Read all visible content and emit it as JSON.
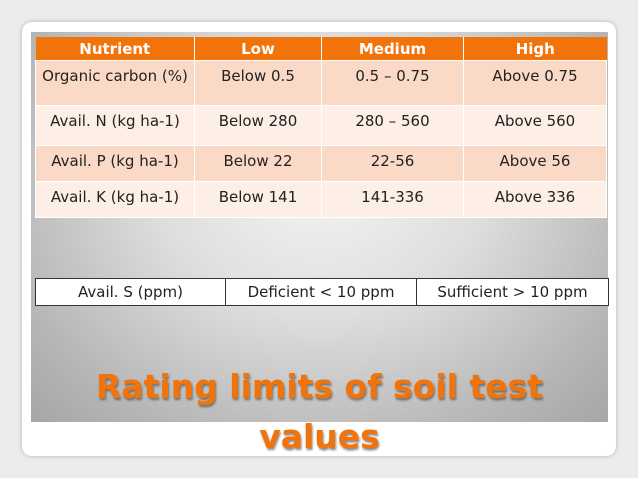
{
  "rating_table": {
    "headers": [
      "Nutrient",
      "Low",
      "Medium",
      "High"
    ],
    "rows": [
      [
        "Organic carbon (%)",
        "Below 0.5",
        "0.5 – 0.75",
        "Above 0.75"
      ],
      [
        "Avail. N (kg ha-1)",
        "Below 280",
        "280 – 560",
        "Above 560"
      ],
      [
        "Avail. P (kg ha-1)",
        "Below 22",
        "22-56",
        "Above 56"
      ],
      [
        "Avail. K (kg ha-1)",
        "Below 141",
        "141-336",
        "Above 336"
      ]
    ]
  },
  "sulfur_table": {
    "cells": [
      "Avail. S (ppm)",
      "Deficient < 10 ppm",
      "Sufficient > 10 ppm"
    ]
  },
  "title": "Rating limits of soil test values",
  "colors": {
    "accent": "#f2730a",
    "row_odd": "#fbd9c7",
    "row_even": "#fdeee6"
  }
}
